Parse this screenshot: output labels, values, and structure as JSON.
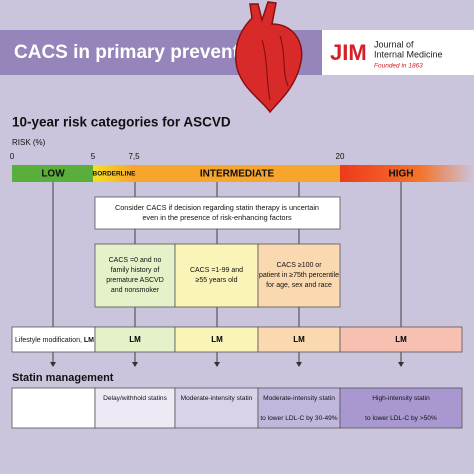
{
  "header": {
    "title": "CACS in primary prevention",
    "journal_abbr": "JIM",
    "journal_name": [
      "Journal of",
      "Internal Medicine"
    ],
    "founded": "Founded in 1863"
  },
  "section1": {
    "title": "10-year risk categories for ASCVD",
    "axis_label": "RISK (%)",
    "scale": [
      "0",
      "5",
      "7,5",
      "20"
    ],
    "categories": [
      "LOW",
      "BORDERLINE",
      "INTERMEDIATE",
      "HIGH"
    ]
  },
  "consider": [
    "Consider CACS if decision regarding statin therapy is uncertain",
    "even in the presence of risk-enhancing factors"
  ],
  "cacs_boxes": [
    [
      "CACS =0 and no",
      "family history of",
      "premature ASCVD",
      "and nonsmoker"
    ],
    [
      "CACS =1-99 and",
      "≥55 years old"
    ],
    [
      "CACS ≥100 or",
      "patient in ≥75th percentile",
      "for age, sex and race"
    ]
  ],
  "lm_row": {
    "label": "Lifestyle modification, ",
    "label_abbr": "LM",
    "cells": [
      "LM",
      "LM",
      "LM",
      "LM"
    ]
  },
  "section2": {
    "title": "Statin management",
    "cells": [
      [
        "Delay/withhold statins"
      ],
      [
        "Moderate-intensity statin"
      ],
      [
        "Moderate-intensity statin",
        "to lower LDL-C by 30-49%"
      ],
      [
        "High-intensity statin",
        "to lower LDL-C by >50%"
      ]
    ]
  }
}
